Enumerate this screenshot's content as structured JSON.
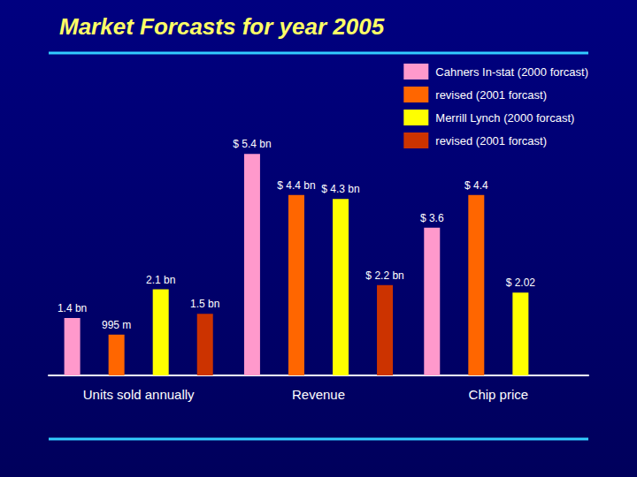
{
  "chart_data": {
    "type": "bar",
    "title": "Market Forcasts for year 2005",
    "categories": [
      "Units sold annually",
      "Revenue",
      "Chip price"
    ],
    "series": [
      {
        "name": "Cahners In-stat (2000 forcast)",
        "color": "#ff99cc",
        "values": [
          1.4,
          5.4,
          3.6
        ],
        "value_labels": [
          "1.4 bn",
          "$ 5.4 bn",
          "$ 3.6"
        ]
      },
      {
        "name": "revised (2001 forcast)",
        "color": "#ff6600",
        "values": [
          0.995,
          4.4,
          4.4
        ],
        "value_labels": [
          "995 m",
          "$ 4.4 bn",
          "$ 4.4"
        ]
      },
      {
        "name": "Merrill Lynch (2000 forcast)",
        "color": "#ffff00",
        "values": [
          2.1,
          4.3,
          2.02
        ],
        "value_labels": [
          "2.1 bn",
          "$ 4.3 bn",
          "$ 2.02"
        ]
      },
      {
        "name": "revised (2001 forcast)",
        "color": "#cc3300",
        "values": [
          1.5,
          2.2,
          null
        ],
        "value_labels": [
          "1.5 bn",
          "$ 2.2 bn",
          null
        ]
      }
    ],
    "ylim": [
      0,
      7
    ],
    "grid": false,
    "data_labels": true,
    "tick_labels": "x",
    "legend": "upper right"
  }
}
